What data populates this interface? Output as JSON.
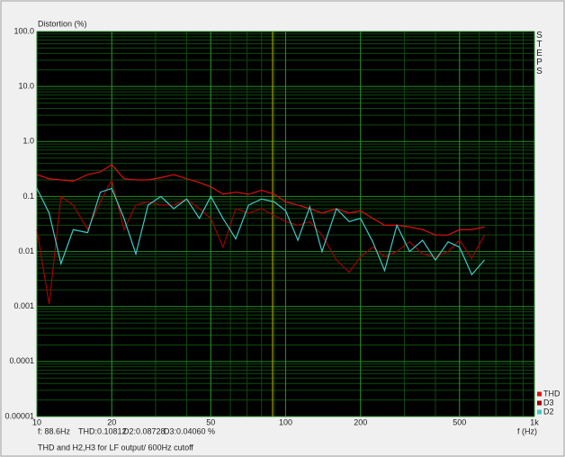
{
  "chart_data": {
    "type": "line",
    "title": "Distortion (%)",
    "x_label": "f (Hz)",
    "side_label": "STEPS",
    "note": "THD and H2,H3 for LF output/ 600Hz cutoff",
    "log_x": true,
    "log_y": true,
    "grid": true,
    "legend": "bottom-right",
    "xlim": [
      10,
      1000
    ],
    "ylim": [
      1e-05,
      100
    ],
    "xticks": [
      10,
      20,
      50,
      100,
      200,
      500,
      {
        "value": 1000,
        "label": "1k"
      }
    ],
    "yticks": [
      {
        "value": 100,
        "label": "100.0"
      },
      {
        "value": 10,
        "label": "10.0"
      },
      {
        "value": 1,
        "label": "1.0"
      },
      0.1,
      0.01,
      0.001,
      0.0001,
      1e-05
    ],
    "cursor": {
      "value": 88.6,
      "label": "f: 88.6Hz",
      "color": "#c8b400"
    },
    "readouts": [
      "THD:0.10812",
      "D2:0.08728",
      "D3:0.04060 %"
    ],
    "x": [
      10,
      11.2,
      12.5,
      14,
      16,
      18,
      20,
      22.4,
      25,
      28,
      31.5,
      35.5,
      40,
      45,
      50,
      56,
      63,
      71,
      80,
      90,
      100,
      112,
      125,
      140,
      160,
      180,
      200,
      224,
      250,
      280,
      315,
      355,
      400,
      450,
      500,
      560,
      630
    ],
    "series": [
      {
        "name": "THD",
        "color": "#e01010",
        "values": [
          0.25,
          0.21,
          0.2,
          0.19,
          0.25,
          0.28,
          0.38,
          0.21,
          0.2,
          0.2,
          0.22,
          0.25,
          0.21,
          0.18,
          0.15,
          0.11,
          0.12,
          0.11,
          0.13,
          0.11,
          0.08,
          0.07,
          0.06,
          0.05,
          0.06,
          0.05,
          0.055,
          0.04,
          0.03,
          0.03,
          0.028,
          0.025,
          0.02,
          0.02,
          0.025,
          0.025,
          0.028
        ]
      },
      {
        "name": "D3",
        "color": "#a00000",
        "values": [
          0.025,
          0.0011,
          0.1,
          0.07,
          0.025,
          0.08,
          0.2,
          0.025,
          0.07,
          0.08,
          0.07,
          0.07,
          0.09,
          0.06,
          0.04,
          0.012,
          0.06,
          0.05,
          0.06,
          0.045,
          0.035,
          0.03,
          0.035,
          0.02,
          0.007,
          0.0042,
          0.008,
          0.012,
          0.008,
          0.01,
          0.015,
          0.009,
          0.008,
          0.01,
          0.016,
          0.0075,
          0.02
        ]
      },
      {
        "name": "D2",
        "color": "#40c8c8",
        "values": [
          0.14,
          0.05,
          0.006,
          0.025,
          0.022,
          0.12,
          0.14,
          0.04,
          0.009,
          0.07,
          0.1,
          0.06,
          0.09,
          0.04,
          0.1,
          0.04,
          0.017,
          0.07,
          0.09,
          0.08,
          0.055,
          0.016,
          0.065,
          0.01,
          0.06,
          0.035,
          0.04,
          0.015,
          0.0045,
          0.03,
          0.01,
          0.016,
          0.007,
          0.015,
          0.012,
          0.0038,
          0.007
        ]
      }
    ]
  }
}
